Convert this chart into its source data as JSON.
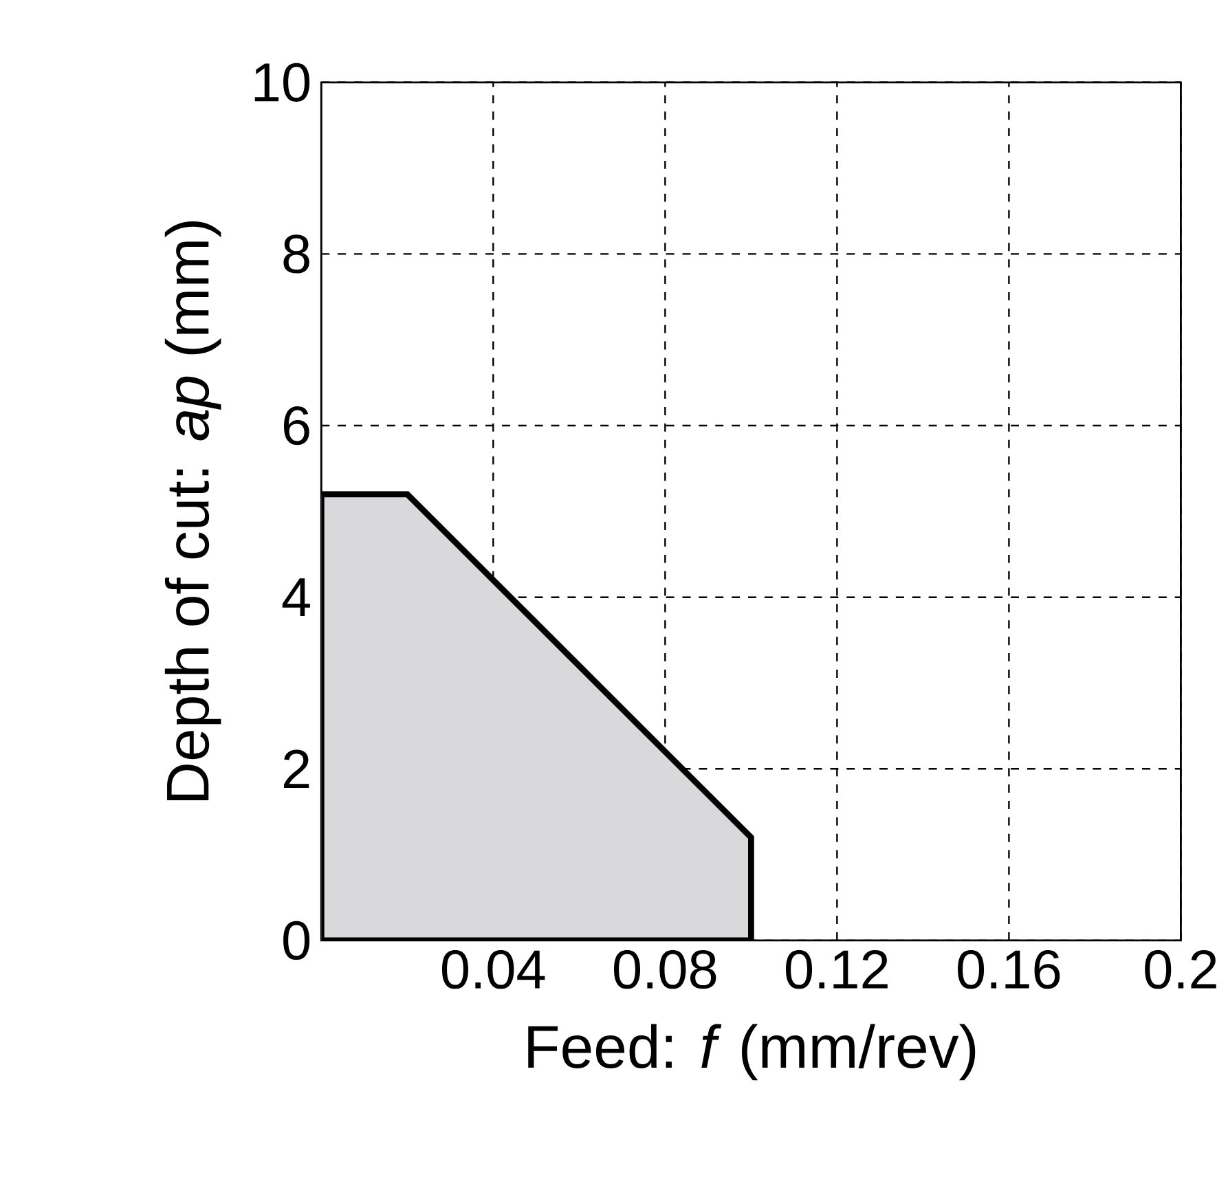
{
  "chart_data": {
    "type": "area",
    "xlabel": "Feed: *f* (mm/rev)",
    "ylabel": "Depth of cut: *ap* (mm)",
    "x": [
      0,
      0.02,
      0.1
    ],
    "series": [
      {
        "color": "#d9d9dc",
        "values": [
          5.2,
          5.2,
          1.2
        ]
      }
    ],
    "xlim": [
      0,
      0.2
    ],
    "ylim": [
      0,
      10
    ],
    "xticks": [
      0.04,
      0.08,
      0.12,
      0.16,
      0.2
    ],
    "yticks": [
      0,
      2,
      4,
      6,
      8,
      10
    ],
    "grid": true
  }
}
